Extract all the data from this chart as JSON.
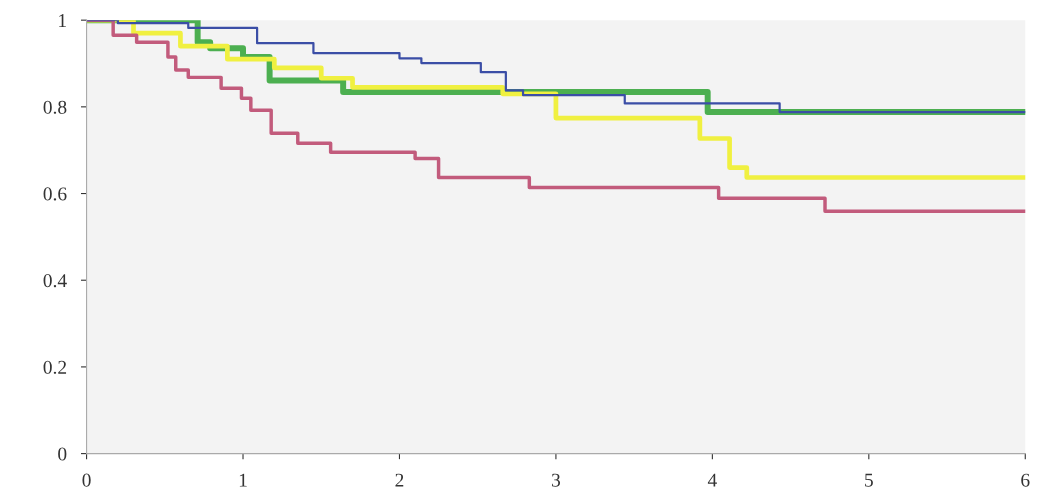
{
  "chart_data": {
    "type": "step",
    "xlim": [
      0,
      6
    ],
    "ylim": [
      0,
      1
    ],
    "xticks": [
      0,
      1,
      2,
      3,
      4,
      5,
      6
    ],
    "yticks": [
      0,
      0.2,
      0.4,
      0.6,
      0.8,
      1
    ],
    "grid": false,
    "legend": false,
    "line_style": "solid",
    "marker": "none",
    "series": [
      {
        "color": "#4caf50",
        "x": [
          0,
          0.71,
          0.79,
          1.0,
          1.17,
          1.64,
          3.97,
          6
        ],
        "values": [
          1,
          0.949,
          0.935,
          0.915,
          0.861,
          0.834,
          0.788,
          0.788
        ]
      },
      {
        "color": "#f0f040",
        "x": [
          0,
          0.3,
          0.6,
          0.9,
          1.2,
          1.5,
          1.7,
          2.66,
          3.0,
          3.78,
          3.92,
          4.11,
          4.22,
          6
        ],
        "values": [
          1,
          0.97,
          0.94,
          0.91,
          0.89,
          0.866,
          0.845,
          0.83,
          0.774,
          0.774,
          0.727,
          0.66,
          0.637,
          0.637
        ]
      },
      {
        "color": "#c25b7c",
        "x": [
          0,
          0.17,
          0.32,
          0.52,
          0.57,
          0.65,
          0.86,
          0.99,
          1.05,
          1.18,
          1.35,
          1.56,
          2.1,
          2.25,
          2.83,
          4.04,
          4.72,
          6
        ],
        "values": [
          1,
          0.965,
          0.949,
          0.915,
          0.885,
          0.868,
          0.843,
          0.82,
          0.792,
          0.739,
          0.716,
          0.695,
          0.681,
          0.637,
          0.614,
          0.589,
          0.559,
          0.559
        ]
      },
      {
        "color": "#3b4ea6",
        "x": [
          0,
          0.2,
          0.65,
          1.09,
          1.45,
          2.0,
          2.14,
          2.52,
          2.68,
          2.79,
          3.44,
          4.43,
          6
        ],
        "values": [
          1,
          0.993,
          0.982,
          0.947,
          0.924,
          0.912,
          0.901,
          0.88,
          0.838,
          0.827,
          0.808,
          0.788,
          0.788
        ]
      }
    ]
  }
}
